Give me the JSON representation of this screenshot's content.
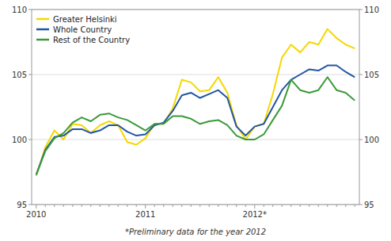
{
  "chart_data": {
    "type": "line",
    "categories": [
      "2010",
      null,
      null,
      null,
      null,
      null,
      null,
      null,
      null,
      null,
      null,
      null,
      "2011",
      null,
      null,
      null,
      null,
      null,
      null,
      null,
      null,
      null,
      null,
      null,
      "2012*",
      null,
      null,
      null,
      null,
      null,
      null,
      null,
      null,
      null,
      null,
      null
    ],
    "series": [
      {
        "name": "Greater Helsinki",
        "color": "#f5d800",
        "values": [
          97.2,
          99.4,
          100.7,
          100.0,
          101.2,
          101.1,
          100.5,
          101.1,
          101.4,
          101.1,
          99.8,
          99.6,
          100.1,
          101.2,
          101.2,
          102.4,
          104.6,
          104.4,
          103.7,
          103.8,
          104.8,
          103.6,
          101.1,
          100.0,
          101.0,
          101.2,
          103.5,
          106.3,
          107.3,
          106.7,
          107.5,
          107.3,
          108.5,
          107.8,
          107.3,
          107.0
        ]
      },
      {
        "name": "Whole Country",
        "color": "#2255a4",
        "values": [
          97.3,
          99.2,
          100.2,
          100.3,
          100.8,
          100.8,
          100.5,
          100.7,
          101.1,
          101.1,
          100.6,
          100.3,
          100.4,
          101.1,
          101.3,
          102.2,
          103.4,
          103.6,
          103.2,
          103.5,
          103.8,
          103.2,
          101.0,
          100.3,
          101.0,
          101.2,
          102.5,
          103.8,
          104.6,
          105.0,
          105.4,
          105.3,
          105.7,
          105.7,
          105.2,
          104.8
        ]
      },
      {
        "name": "Rest of the Country",
        "color": "#3a9a3a",
        "values": [
          97.3,
          99.1,
          100.1,
          100.5,
          101.3,
          101.7,
          101.4,
          101.9,
          102.0,
          101.7,
          101.5,
          101.1,
          100.7,
          101.2,
          101.2,
          101.8,
          101.8,
          101.6,
          101.2,
          101.4,
          101.5,
          101.1,
          100.3,
          100.0,
          100.0,
          100.4,
          101.5,
          102.6,
          104.6,
          103.8,
          103.6,
          103.8,
          104.8,
          103.8,
          103.6,
          103.0
        ]
      }
    ],
    "ylim": [
      95,
      110
    ],
    "yticks": [
      95,
      100,
      105,
      110
    ],
    "y2lim": [
      95,
      110
    ],
    "y2ticks": [
      95,
      100,
      105,
      110
    ],
    "grid": true,
    "legend": "upper left",
    "annotations": [
      "*Preliminary data for the year 2012"
    ]
  }
}
